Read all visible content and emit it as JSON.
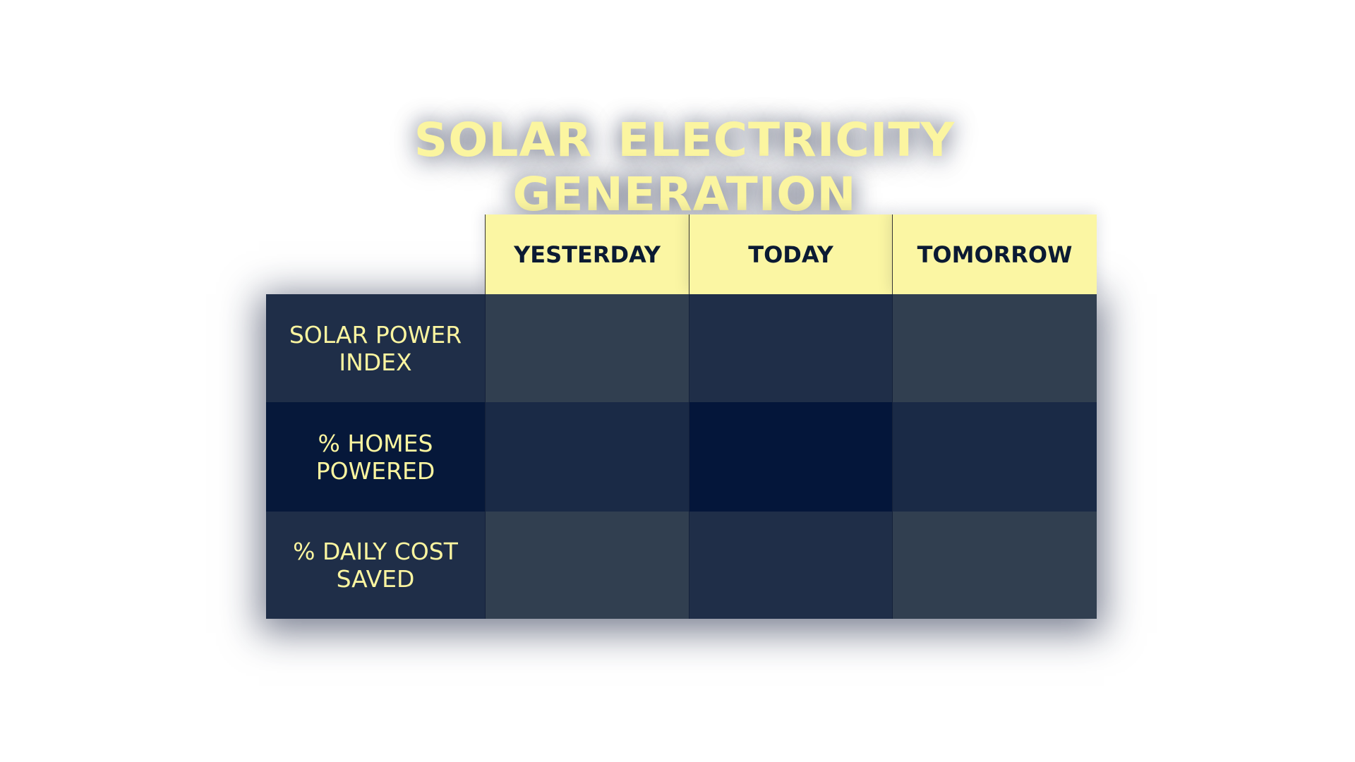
{
  "title": "SOLAR ELECTRICITY GENERATION",
  "table": {
    "columns": [
      "YESTERDAY",
      "TODAY",
      "TOMORROW"
    ],
    "rows": [
      {
        "label": "SOLAR POWER INDEX"
      },
      {
        "label": "% HOMES POWERED"
      },
      {
        "label": "% DAILY COST SAVED"
      }
    ]
  }
}
